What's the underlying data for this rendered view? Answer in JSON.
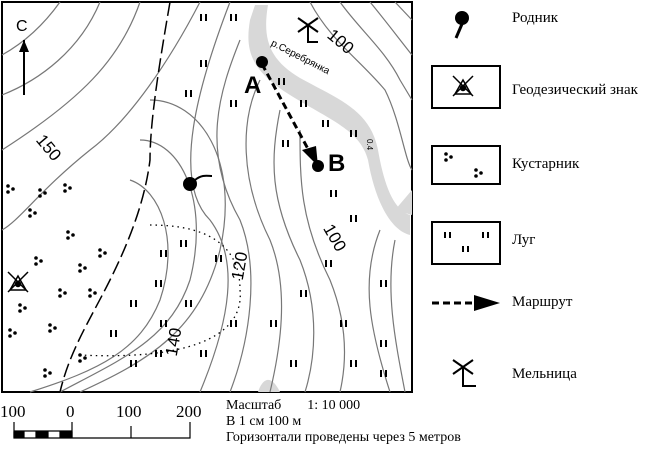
{
  "map": {
    "river_label": "р.Серебрянка",
    "river_width": "0.4",
    "contour_labels": [
      "100",
      "100",
      "120",
      "140",
      "150"
    ],
    "point_a": "A",
    "point_b": "B",
    "north": "С"
  },
  "legend": [
    {
      "icon": "spring-icon",
      "label": "Родник"
    },
    {
      "icon": "geodetic-sign-icon",
      "label": "Геодезический знак"
    },
    {
      "icon": "shrub-icon",
      "label": "Кустарник"
    },
    {
      "icon": "meadow-icon",
      "label": "Луг"
    },
    {
      "icon": "route-arrow-icon",
      "label": "Маршрут"
    },
    {
      "icon": "mill-icon",
      "label": "Мельница"
    }
  ],
  "scale": {
    "ticks": [
      "100",
      "0",
      "100",
      "200"
    ],
    "title": "Масштаб",
    "ratio": "1: 10 000",
    "per_cm": "В 1 см 100 м",
    "contour_note": "Горизонтали проведены через 5 метров"
  }
}
